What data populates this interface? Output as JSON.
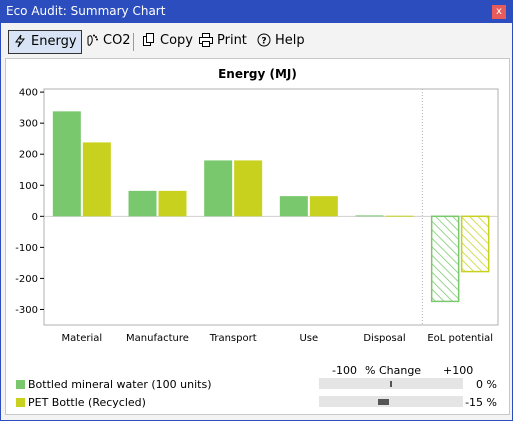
{
  "window": {
    "title": "Eco Audit: Summary Chart",
    "close_glyph": "x"
  },
  "toolbar": {
    "energy_label": "Energy",
    "co2_label": "CO2",
    "copy_label": "Copy",
    "print_label": "Print",
    "help_label": "Help"
  },
  "chart_data": {
    "type": "bar",
    "title": "Energy (MJ)",
    "categories": [
      "Material",
      "Manufacture",
      "Transport",
      "Use",
      "Disposal",
      "EoL potential"
    ],
    "series": [
      {
        "name": "Bottled mineral water (100 units)",
        "color": "#7ac86e",
        "values": [
          338,
          82,
          180,
          65,
          3,
          -274
        ]
      },
      {
        "name": "PET Bottle (Recycled)",
        "color": "#c9d11f",
        "values": [
          238,
          82,
          180,
          65,
          2,
          -178
        ]
      }
    ],
    "hatched_categories": [
      "EoL potential"
    ],
    "ylim": [
      -350,
      410
    ],
    "yticks": [
      400,
      300,
      200,
      100,
      0,
      -100,
      -200,
      -300
    ],
    "grid": false,
    "legend_position": "bottom-left"
  },
  "percent_change": {
    "header_left": "-100",
    "header_mid": "% Change",
    "header_right": "+100",
    "rows": [
      {
        "value": 0,
        "label": "0 %"
      },
      {
        "value": -15,
        "label": "-15 %"
      }
    ]
  }
}
